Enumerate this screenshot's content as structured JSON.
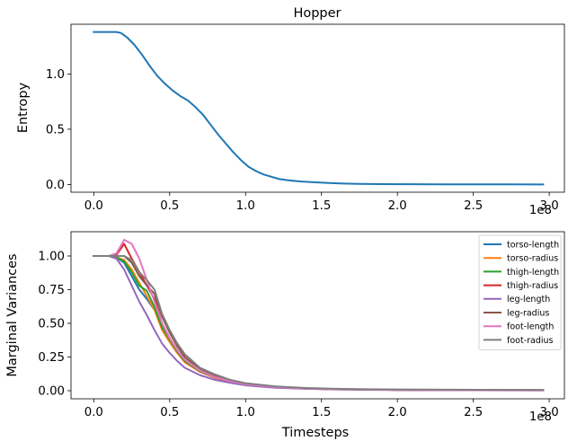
{
  "chart_data": [
    {
      "type": "line",
      "title": "Hopper",
      "xlabel": "",
      "ylabel": "Entropy",
      "x_offset_label": "1e8",
      "xlim": [
        -0.15,
        3.1
      ],
      "ylim": [
        -0.07,
        1.45
      ],
      "xticks": [
        0.0,
        0.5,
        1.0,
        1.5,
        2.0,
        2.5,
        3.0
      ],
      "xtick_labels": [
        "0.0",
        "0.5",
        "1.0",
        "1.5",
        "2.0",
        "2.5",
        "3.0"
      ],
      "yticks": [
        0.0,
        0.5,
        1.0
      ],
      "ytick_labels": [
        "0.0",
        "0.5",
        "1.0"
      ],
      "grid": false,
      "series": [
        {
          "color": "#1f77b4",
          "x": [
            0.0,
            0.05,
            0.1,
            0.15,
            0.18,
            0.22,
            0.27,
            0.32,
            0.37,
            0.42,
            0.47,
            0.52,
            0.57,
            0.62,
            0.67,
            0.72,
            0.77,
            0.82,
            0.87,
            0.92,
            0.97,
            1.02,
            1.07,
            1.12,
            1.17,
            1.22,
            1.27,
            1.32,
            1.37,
            1.45,
            1.55,
            1.65,
            1.75,
            1.9,
            2.1,
            2.3,
            2.5,
            2.7,
            2.96
          ],
          "y": [
            1.38,
            1.38,
            1.38,
            1.38,
            1.37,
            1.33,
            1.26,
            1.17,
            1.07,
            0.98,
            0.91,
            0.85,
            0.8,
            0.76,
            0.7,
            0.63,
            0.54,
            0.45,
            0.37,
            0.29,
            0.22,
            0.16,
            0.12,
            0.09,
            0.07,
            0.05,
            0.04,
            0.033,
            0.027,
            0.02,
            0.013,
            0.008,
            0.005,
            0.003,
            0.002,
            0.001,
            0.001,
            0.001,
            0.0
          ]
        }
      ]
    },
    {
      "type": "line",
      "title": "",
      "xlabel": "Timesteps",
      "ylabel": "Marginal Variances",
      "x_offset_label": "1e8",
      "xlim": [
        -0.15,
        3.1
      ],
      "ylim": [
        -0.06,
        1.18
      ],
      "xticks": [
        0.0,
        0.5,
        1.0,
        1.5,
        2.0,
        2.5,
        3.0
      ],
      "xtick_labels": [
        "0.0",
        "0.5",
        "1.0",
        "1.5",
        "2.0",
        "2.5",
        "3.0"
      ],
      "yticks": [
        0.0,
        0.25,
        0.5,
        0.75,
        1.0
      ],
      "ytick_labels": [
        "0.00",
        "0.25",
        "0.50",
        "0.75",
        "1.00"
      ],
      "grid": false,
      "legend_position": "top-right",
      "series": [
        {
          "name": "torso-length",
          "color": "#1f77b4",
          "x": [
            0.0,
            0.05,
            0.1,
            0.15,
            0.2,
            0.25,
            0.3,
            0.35,
            0.4,
            0.45,
            0.5,
            0.55,
            0.6,
            0.7,
            0.8,
            0.9,
            1.0,
            1.1,
            1.2,
            1.4,
            1.6,
            1.8,
            2.0,
            2.2,
            2.5,
            2.96
          ],
          "y": [
            1.0,
            1.0,
            1.0,
            0.99,
            0.95,
            0.85,
            0.75,
            0.68,
            0.6,
            0.48,
            0.38,
            0.3,
            0.22,
            0.14,
            0.095,
            0.065,
            0.045,
            0.035,
            0.025,
            0.015,
            0.01,
            0.008,
            0.006,
            0.005,
            0.004,
            0.003
          ]
        },
        {
          "name": "torso-radius",
          "color": "#ff7f0e",
          "x": [
            0.0,
            0.05,
            0.1,
            0.15,
            0.2,
            0.25,
            0.3,
            0.35,
            0.4,
            0.45,
            0.5,
            0.55,
            0.6,
            0.7,
            0.8,
            0.9,
            1.0,
            1.1,
            1.2,
            1.4,
            1.6,
            1.8,
            2.0,
            2.2,
            2.5,
            2.96
          ],
          "y": [
            1.0,
            1.0,
            1.0,
            0.99,
            0.97,
            0.9,
            0.8,
            0.7,
            0.6,
            0.45,
            0.36,
            0.28,
            0.21,
            0.14,
            0.095,
            0.065,
            0.045,
            0.035,
            0.025,
            0.015,
            0.01,
            0.008,
            0.006,
            0.005,
            0.004,
            0.003
          ]
        },
        {
          "name": "thigh-length",
          "color": "#2ca02c",
          "x": [
            0.0,
            0.05,
            0.1,
            0.15,
            0.2,
            0.25,
            0.3,
            0.35,
            0.4,
            0.45,
            0.5,
            0.55,
            0.6,
            0.7,
            0.8,
            0.9,
            1.0,
            1.1,
            1.2,
            1.4,
            1.6,
            1.8,
            2.0,
            2.2,
            2.5,
            2.96
          ],
          "y": [
            1.0,
            1.0,
            1.0,
            0.99,
            0.96,
            0.88,
            0.78,
            0.74,
            0.62,
            0.47,
            0.38,
            0.29,
            0.22,
            0.145,
            0.1,
            0.068,
            0.047,
            0.036,
            0.026,
            0.016,
            0.011,
            0.008,
            0.006,
            0.005,
            0.004,
            0.003
          ]
        },
        {
          "name": "thigh-radius",
          "color": "#d62728",
          "x": [
            0.0,
            0.05,
            0.1,
            0.15,
            0.2,
            0.25,
            0.3,
            0.35,
            0.4,
            0.45,
            0.5,
            0.55,
            0.6,
            0.7,
            0.8,
            0.9,
            1.0,
            1.1,
            1.2,
            1.4,
            1.6,
            1.8,
            2.0,
            2.2,
            2.5,
            2.96
          ],
          "y": [
            1.0,
            1.0,
            1.0,
            1.01,
            1.09,
            0.98,
            0.88,
            0.78,
            0.68,
            0.5,
            0.39,
            0.3,
            0.23,
            0.15,
            0.1,
            0.07,
            0.048,
            0.037,
            0.027,
            0.016,
            0.011,
            0.008,
            0.006,
            0.005,
            0.004,
            0.003
          ]
        },
        {
          "name": "leg-length",
          "color": "#9467bd",
          "x": [
            0.0,
            0.05,
            0.1,
            0.15,
            0.2,
            0.25,
            0.3,
            0.35,
            0.4,
            0.45,
            0.5,
            0.55,
            0.6,
            0.7,
            0.8,
            0.9,
            1.0,
            1.1,
            1.2,
            1.4,
            1.6,
            1.8,
            2.0,
            2.2,
            2.5,
            2.96
          ],
          "y": [
            1.0,
            1.0,
            1.0,
            0.98,
            0.9,
            0.78,
            0.66,
            0.56,
            0.45,
            0.35,
            0.28,
            0.22,
            0.17,
            0.115,
            0.08,
            0.058,
            0.04,
            0.03,
            0.022,
            0.014,
            0.009,
            0.007,
            0.005,
            0.004,
            0.003,
            0.002
          ]
        },
        {
          "name": "leg-radius",
          "color": "#8c564b",
          "x": [
            0.0,
            0.05,
            0.1,
            0.15,
            0.2,
            0.25,
            0.3,
            0.35,
            0.4,
            0.45,
            0.5,
            0.55,
            0.6,
            0.7,
            0.8,
            0.9,
            1.0,
            1.1,
            1.2,
            1.4,
            1.6,
            1.8,
            2.0,
            2.2,
            2.5,
            2.96
          ],
          "y": [
            1.0,
            1.0,
            1.0,
            1.0,
            1.0,
            0.95,
            0.85,
            0.78,
            0.72,
            0.55,
            0.43,
            0.33,
            0.25,
            0.16,
            0.11,
            0.075,
            0.052,
            0.04,
            0.03,
            0.018,
            0.012,
            0.009,
            0.007,
            0.006,
            0.005,
            0.004
          ]
        },
        {
          "name": "foot-length",
          "color": "#e377c2",
          "x": [
            0.0,
            0.05,
            0.1,
            0.15,
            0.2,
            0.25,
            0.3,
            0.35,
            0.4,
            0.45,
            0.5,
            0.55,
            0.6,
            0.7,
            0.8,
            0.9,
            1.0,
            1.1,
            1.2,
            1.4,
            1.6,
            1.8,
            2.0,
            2.2,
            2.5,
            2.96
          ],
          "y": [
            1.0,
            1.0,
            1.0,
            1.02,
            1.12,
            1.09,
            0.98,
            0.82,
            0.66,
            0.5,
            0.39,
            0.3,
            0.23,
            0.15,
            0.1,
            0.07,
            0.048,
            0.037,
            0.027,
            0.016,
            0.011,
            0.008,
            0.006,
            0.005,
            0.004,
            0.003
          ]
        },
        {
          "name": "foot-radius",
          "color": "#7f7f7f",
          "x": [
            0.0,
            0.05,
            0.1,
            0.15,
            0.2,
            0.25,
            0.3,
            0.35,
            0.4,
            0.45,
            0.5,
            0.55,
            0.6,
            0.7,
            0.8,
            0.9,
            1.0,
            1.1,
            1.2,
            1.4,
            1.6,
            1.8,
            2.0,
            2.2,
            2.5,
            2.96
          ],
          "y": [
            1.0,
            1.0,
            1.0,
            1.0,
            1.0,
            0.97,
            0.88,
            0.82,
            0.75,
            0.57,
            0.45,
            0.35,
            0.27,
            0.17,
            0.12,
            0.08,
            0.056,
            0.043,
            0.032,
            0.02,
            0.014,
            0.011,
            0.009,
            0.008,
            0.007,
            0.006
          ]
        }
      ]
    }
  ]
}
